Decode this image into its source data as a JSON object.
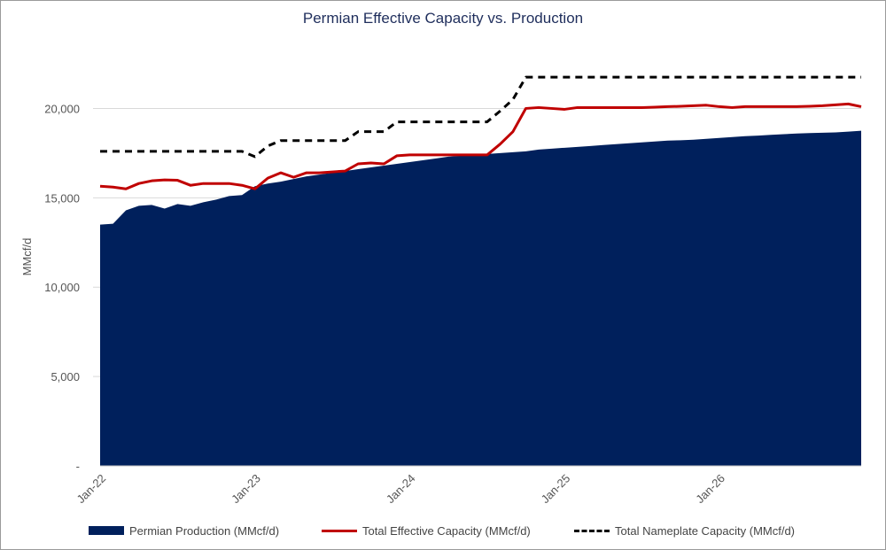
{
  "chart_data": {
    "type": "area",
    "title": "Permian Effective Capacity vs. Production",
    "ylabel": "MMcf/d",
    "xlabel": "",
    "ylim": [
      0,
      22500
    ],
    "yticks": [
      0,
      5000,
      10000,
      15000,
      20000
    ],
    "ytick_labels": [
      "-",
      "5,000",
      "10,000",
      "15,000",
      "20,000"
    ],
    "xtick_labels": [
      "Jan-22",
      "Jan-23",
      "Jan-24",
      "Jan-25",
      "Jan-26"
    ],
    "x_start": "Jan-22",
    "x_end": "Dec-26",
    "grid": "horizontal",
    "legend_position": "bottom",
    "series": [
      {
        "name": "Permian Production (MMcf/d)",
        "kind": "area",
        "color": "#00205c",
        "values": [
          13500,
          13550,
          14300,
          14550,
          14600,
          14400,
          14650,
          14550,
          14750,
          14900,
          15100,
          15150,
          15650,
          15800,
          15900,
          16050,
          16200,
          16300,
          16400,
          16500,
          16600,
          16700,
          16800,
          16900,
          17000,
          17100,
          17200,
          17300,
          17350,
          17400,
          17450,
          17500,
          17550,
          17600,
          17700,
          17750,
          17800,
          17850,
          17900,
          17950,
          18000,
          18050,
          18100,
          18150,
          18200,
          18220,
          18250,
          18300,
          18350,
          18400,
          18450,
          18480,
          18520,
          18560,
          18600,
          18620,
          18640,
          18660,
          18700,
          18750
        ]
      },
      {
        "name": "Total Effective Capacity (MMcf/d)",
        "kind": "line",
        "color": "#c00000",
        "values": [
          15650,
          15600,
          15500,
          15800,
          15950,
          16000,
          15980,
          15700,
          15800,
          15800,
          15800,
          15700,
          15500,
          16100,
          16400,
          16150,
          16400,
          16400,
          16450,
          16500,
          16900,
          16950,
          16900,
          17350,
          17400,
          17400,
          17400,
          17400,
          17400,
          17400,
          17400,
          18000,
          18700,
          20000,
          20050,
          20000,
          19950,
          20050,
          20050,
          20050,
          20050,
          20050,
          20050,
          20070,
          20100,
          20120,
          20150,
          20180,
          20100,
          20050,
          20100,
          20100,
          20100,
          20100,
          20100,
          20120,
          20150,
          20200,
          20250,
          20100
        ]
      },
      {
        "name": "Total Nameplate Capacity (MMcf/d)",
        "kind": "dashed-line",
        "color": "#000000",
        "values": [
          17600,
          17600,
          17600,
          17600,
          17600,
          17600,
          17600,
          17600,
          17600,
          17600,
          17600,
          17600,
          17300,
          17900,
          18200,
          18200,
          18200,
          18200,
          18200,
          18200,
          18700,
          18700,
          18700,
          19250,
          19250,
          19250,
          19250,
          19250,
          19250,
          19250,
          19250,
          19850,
          20500,
          21750,
          21750,
          21750,
          21750,
          21750,
          21750,
          21750,
          21750,
          21750,
          21750,
          21750,
          21750,
          21750,
          21750,
          21750,
          21750,
          21750,
          21750,
          21750,
          21750,
          21750,
          21750,
          21750,
          21750,
          21750,
          21750,
          21750
        ]
      }
    ]
  }
}
